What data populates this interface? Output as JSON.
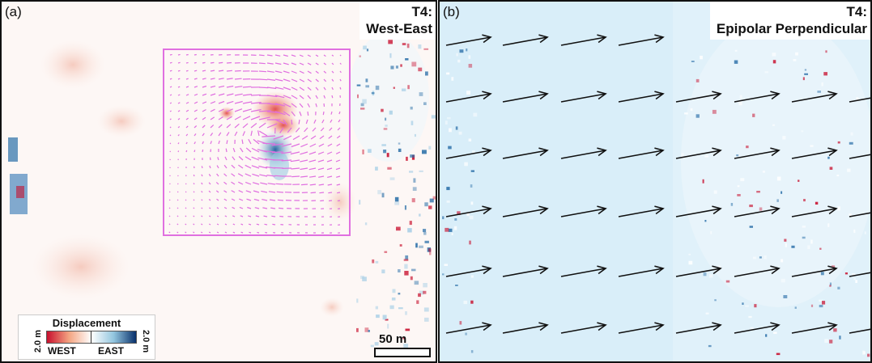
{
  "panel_a": {
    "label": "(a)",
    "title_line1": "T4:",
    "title_line2": "West-East",
    "inset_color": "#e070e0",
    "background_color": "#fdf6f4"
  },
  "panel_b": {
    "label": "(b)",
    "title_line1": "T4:",
    "title_line2": "Epipolar Perpendicular",
    "background_color": "#e3f3fb",
    "arrow_color": "#111111"
  },
  "legend": {
    "title": "Displacement",
    "min_label": "2.0 m",
    "max_label": "2.0 m",
    "west_label": "WEST",
    "east_label": "EAST",
    "color_west": "#c8102e",
    "color_east": "#08306b"
  },
  "scalebar": {
    "label": "50 m"
  }
}
